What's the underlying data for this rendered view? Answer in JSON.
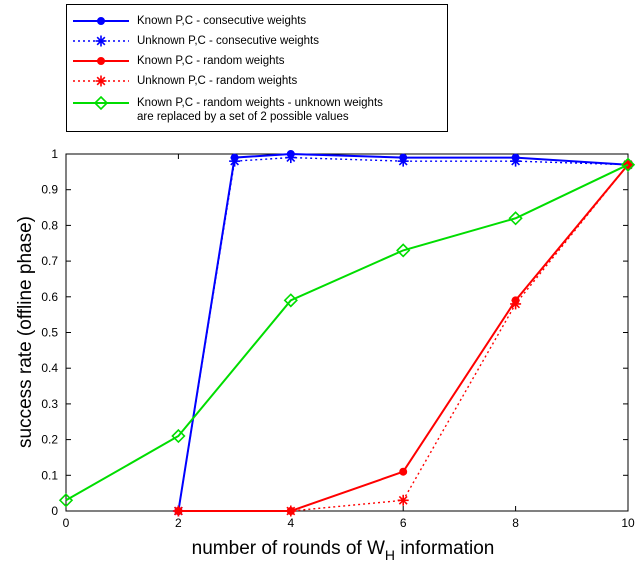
{
  "chart_data": {
    "type": "line",
    "xlabel_main": "number of rounds of W",
    "xlabel_sub": "H",
    "xlabel_tail": " information",
    "ylabel": "success rate (offline phase)",
    "xlim": [
      0,
      10
    ],
    "ylim": [
      0,
      1
    ],
    "xticks": [
      0,
      2,
      4,
      6,
      8,
      10
    ],
    "yticks": [
      0,
      0.1,
      0.2,
      0.3,
      0.4,
      0.5,
      0.6,
      0.7,
      0.8,
      0.9,
      1
    ],
    "grid": false,
    "legend_position": "top-left",
    "series": [
      {
        "name": "Known P,C - consecutive weights",
        "color": "#0000ff",
        "line": "solid",
        "marker": "dot",
        "x": [
          2,
          3,
          4,
          6,
          8,
          10
        ],
        "y": [
          0,
          0.99,
          1.0,
          0.99,
          0.99,
          0.97
        ]
      },
      {
        "name": "Unknown P,C - consecutive weights",
        "color": "#0000ff",
        "line": "dotted",
        "marker": "asterisk",
        "x": [
          2,
          3,
          4,
          6,
          8,
          10
        ],
        "y": [
          0,
          0.98,
          0.99,
          0.98,
          0.98,
          0.97
        ]
      },
      {
        "name": "Known P,C - random weights",
        "color": "#ff0000",
        "line": "solid",
        "marker": "dot",
        "x": [
          2,
          4,
          6,
          8,
          10
        ],
        "y": [
          0,
          0,
          0.11,
          0.59,
          0.97
        ]
      },
      {
        "name": "Unknown P,C - random weights",
        "color": "#ff0000",
        "line": "dotted",
        "marker": "asterisk",
        "x": [
          2,
          4,
          6,
          8,
          10
        ],
        "y": [
          0,
          0,
          0.03,
          0.58,
          0.97
        ]
      },
      {
        "name": "Known P,C - random weights - unknown weights are replaced by a set of 2 possible values",
        "color": "#00dd00",
        "line": "solid",
        "marker": "diamond",
        "x": [
          0,
          2,
          4,
          6,
          8,
          10
        ],
        "y": [
          0.03,
          0.21,
          0.59,
          0.73,
          0.82,
          0.97
        ]
      }
    ]
  },
  "legend": [
    {
      "line1": "Known P,C - consecutive weights",
      "line2": ""
    },
    {
      "line1": "Unknown P,C - consecutive weights",
      "line2": ""
    },
    {
      "line1": "Known P,C - random weights",
      "line2": ""
    },
    {
      "line1": "Unknown P,C - random weights",
      "line2": ""
    },
    {
      "line1": "Known P,C - random weights - unknown weights",
      "line2": "are replaced by a set of 2 possible values"
    }
  ]
}
